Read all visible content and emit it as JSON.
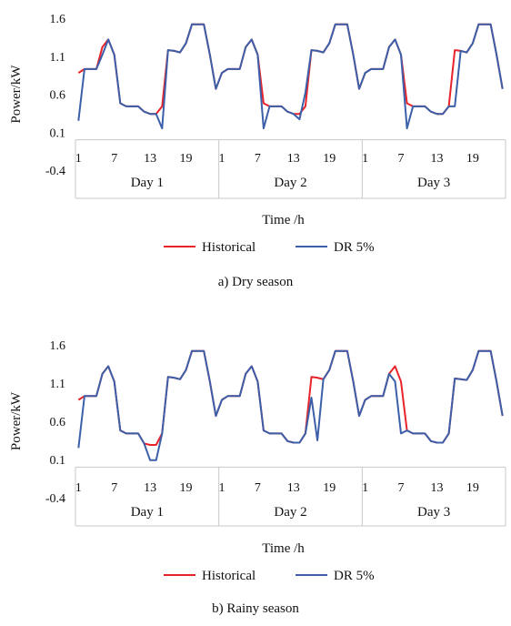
{
  "chart_data": [
    {
      "type": "line",
      "caption": "a) Dry season",
      "ylabel": "Power/kW",
      "xlabel": "Time /h",
      "ylim": [
        -0.4,
        1.6
      ],
      "yticks": [
        "1.6",
        "1.1",
        "0.6",
        "0.1",
        "-0.4"
      ],
      "hour_tick_labels": [
        "1",
        "7",
        "13",
        "19"
      ],
      "days": [
        "Day 1",
        "Day 2",
        "Day 3"
      ],
      "legend_position": "bottom",
      "series": [
        {
          "name": "Historical",
          "color": "#e8232a",
          "values": [
            0.88,
            0.93,
            0.93,
            0.93,
            1.22,
            1.32,
            1.12,
            0.48,
            0.44,
            0.44,
            0.44,
            0.37,
            0.34,
            0.34,
            0.44,
            1.18,
            1.17,
            1.15,
            1.27,
            1.52,
            1.52,
            1.52,
            1.12,
            0.67,
            0.88,
            0.93,
            0.93,
            0.93,
            1.22,
            1.32,
            1.12,
            0.48,
            0.44,
            0.44,
            0.44,
            0.37,
            0.34,
            0.34,
            0.44,
            1.18,
            1.17,
            1.15,
            1.27,
            1.52,
            1.52,
            1.52,
            1.12,
            0.67,
            0.88,
            0.93,
            0.93,
            0.93,
            1.22,
            1.32,
            1.12,
            0.48,
            0.44,
            0.44,
            0.44,
            0.37,
            0.34,
            0.34,
            0.44,
            1.18,
            1.17,
            1.15,
            1.27,
            1.52,
            1.52,
            1.52,
            1.12,
            0.67
          ]
        },
        {
          "name": "DR 5%",
          "color": "#3b5fa8",
          "values": [
            0.25,
            0.93,
            0.93,
            0.93,
            1.12,
            1.32,
            1.12,
            0.48,
            0.44,
            0.44,
            0.44,
            0.37,
            0.34,
            0.34,
            0.15,
            1.18,
            1.17,
            1.15,
            1.27,
            1.52,
            1.52,
            1.52,
            1.12,
            0.67,
            0.88,
            0.93,
            0.93,
            0.93,
            1.22,
            1.32,
            1.12,
            0.15,
            0.44,
            0.44,
            0.44,
            0.37,
            0.34,
            0.27,
            0.62,
            1.18,
            1.17,
            1.15,
            1.27,
            1.52,
            1.52,
            1.52,
            1.12,
            0.67,
            0.88,
            0.93,
            0.93,
            0.93,
            1.22,
            1.32,
            1.12,
            0.15,
            0.44,
            0.44,
            0.44,
            0.37,
            0.34,
            0.34,
            0.44,
            0.44,
            1.17,
            1.15,
            1.27,
            1.52,
            1.52,
            1.52,
            1.12,
            0.67
          ]
        }
      ]
    },
    {
      "type": "line",
      "caption": "b) Rainy season",
      "ylabel": "Power/kW",
      "xlabel": "Time /h",
      "ylim": [
        -0.4,
        1.6
      ],
      "yticks": [
        "1.6",
        "1.1",
        "0.6",
        "0.1",
        "-0.4"
      ],
      "hour_tick_labels": [
        "1",
        "7",
        "13",
        "19"
      ],
      "days": [
        "Day 1",
        "Day 2",
        "Day 3"
      ],
      "legend_position": "bottom",
      "series": [
        {
          "name": "Historical",
          "color": "#e8232a",
          "values": [
            0.88,
            0.93,
            0.93,
            0.93,
            1.22,
            1.32,
            1.12,
            0.48,
            0.44,
            0.44,
            0.44,
            0.31,
            0.29,
            0.29,
            0.44,
            1.18,
            1.17,
            1.15,
            1.27,
            1.52,
            1.52,
            1.52,
            1.12,
            0.67,
            0.88,
            0.93,
            0.93,
            0.93,
            1.22,
            1.32,
            1.12,
            0.48,
            0.44,
            0.44,
            0.44,
            0.34,
            0.32,
            0.32,
            0.44,
            1.18,
            1.17,
            1.15,
            1.27,
            1.52,
            1.52,
            1.52,
            1.12,
            0.67,
            0.88,
            0.93,
            0.93,
            0.93,
            1.22,
            1.32,
            1.12,
            0.48,
            0.44,
            0.44,
            0.44,
            0.34,
            0.32,
            0.32,
            0.44,
            1.16,
            1.15,
            1.14,
            1.27,
            1.52,
            1.52,
            1.52,
            1.12,
            0.67
          ]
        },
        {
          "name": "DR 5%",
          "color": "#3b5fa8",
          "values": [
            0.25,
            0.93,
            0.93,
            0.93,
            1.22,
            1.32,
            1.12,
            0.48,
            0.44,
            0.44,
            0.44,
            0.31,
            0.09,
            0.09,
            0.44,
            1.18,
            1.17,
            1.15,
            1.27,
            1.52,
            1.52,
            1.52,
            1.12,
            0.67,
            0.88,
            0.93,
            0.93,
            0.93,
            1.22,
            1.32,
            1.12,
            0.48,
            0.44,
            0.44,
            0.44,
            0.34,
            0.32,
            0.32,
            0.44,
            0.91,
            0.35,
            1.15,
            1.27,
            1.52,
            1.52,
            1.52,
            1.12,
            0.67,
            0.88,
            0.93,
            0.93,
            0.93,
            1.22,
            1.12,
            0.44,
            0.48,
            0.44,
            0.44,
            0.44,
            0.34,
            0.32,
            0.32,
            0.44,
            1.16,
            1.15,
            1.14,
            1.27,
            1.52,
            1.52,
            1.52,
            1.12,
            0.67
          ]
        }
      ]
    }
  ]
}
